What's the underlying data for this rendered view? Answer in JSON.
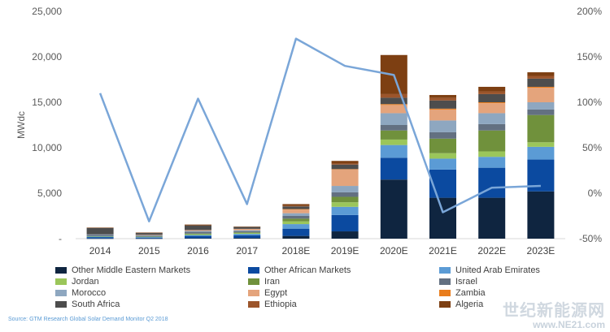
{
  "chart_data": {
    "type": "bar",
    "stacked": true,
    "ylabel": "MWdc",
    "ylim": [
      0,
      25000
    ],
    "y2lim": [
      -50,
      200
    ],
    "y_ticks": [
      "-",
      "5,000",
      "10,000",
      "15,000",
      "20,000",
      "25,000"
    ],
    "y2_ticks": [
      "-50%",
      "0%",
      "50%",
      "100%",
      "150%",
      "200%"
    ],
    "categories": [
      "2014",
      "2015",
      "2016",
      "2017",
      "2018E",
      "2019E",
      "2020E",
      "2021E",
      "2022E",
      "2023E"
    ],
    "series": [
      {
        "name": "Other Middle Eastern Markets",
        "color": "#0f2540",
        "values": [
          20,
          20,
          50,
          80,
          300,
          800,
          6500,
          4500,
          4500,
          5200
        ]
      },
      {
        "name": "Other African Markets",
        "color": "#0b4aa0",
        "values": [
          150,
          100,
          250,
          300,
          800,
          1800,
          2400,
          3100,
          3300,
          3500
        ]
      },
      {
        "name": "United Arab Emirates",
        "color": "#5b9bd5",
        "values": [
          50,
          50,
          100,
          150,
          500,
          900,
          1400,
          1200,
          1200,
          1400
        ]
      },
      {
        "name": "Jordan",
        "color": "#9bc65a",
        "values": [
          50,
          50,
          100,
          100,
          300,
          500,
          600,
          600,
          600,
          500
        ]
      },
      {
        "name": "Iran",
        "color": "#70913c",
        "values": [
          0,
          0,
          50,
          50,
          300,
          600,
          1000,
          1600,
          2300,
          3000
        ]
      },
      {
        "name": "Israel",
        "color": "#637081",
        "values": [
          150,
          100,
          200,
          150,
          300,
          500,
          600,
          700,
          700,
          600
        ]
      },
      {
        "name": "Morocco",
        "color": "#8ea7c0",
        "values": [
          50,
          50,
          100,
          100,
          300,
          700,
          1300,
          1300,
          1200,
          800
        ]
      },
      {
        "name": "Egypt",
        "color": "#e4a47c",
        "values": [
          0,
          50,
          100,
          150,
          400,
          1800,
          900,
          1200,
          1100,
          1600
        ]
      },
      {
        "name": "Zambia",
        "color": "#e97d1d",
        "values": [
          0,
          0,
          0,
          0,
          50,
          50,
          100,
          100,
          100,
          100
        ]
      },
      {
        "name": "South Africa",
        "color": "#4d4d4d",
        "values": [
          700,
          200,
          500,
          200,
          300,
          500,
          700,
          900,
          900,
          900
        ]
      },
      {
        "name": "Ethiopia",
        "color": "#9c552b",
        "values": [
          0,
          0,
          0,
          0,
          50,
          100,
          400,
          300,
          300,
          300
        ]
      },
      {
        "name": "Algeria",
        "color": "#7d3f12",
        "values": [
          50,
          50,
          100,
          50,
          200,
          300,
          4300,
          300,
          500,
          400
        ]
      }
    ],
    "line": {
      "name": "Growth rate",
      "axis": "right",
      "color": "#7aa6d8",
      "values": [
        110,
        -31,
        104,
        -12,
        170,
        140,
        130,
        -21,
        6,
        8
      ]
    }
  },
  "legend": [
    "Other Middle Eastern Markets",
    "Other African Markets",
    "United Arab Emirates",
    "Jordan",
    "Iran",
    "Israel",
    "Morocco",
    "Egypt",
    "Zambia",
    "South Africa",
    "Ethiopia",
    "Algeria"
  ],
  "source": "Source: GTM Research Global Solar Demand Monitor Q2 2018",
  "watermark": {
    "line1": "世纪新能源网",
    "line2": "www.NE21.com"
  }
}
